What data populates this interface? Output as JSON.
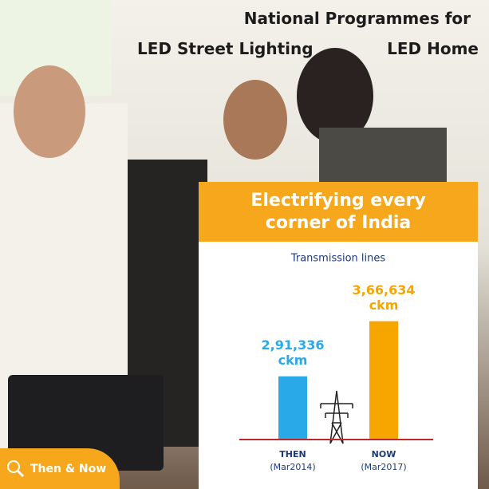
{
  "background_text": [
    "National Programmes for",
    "LED Street Lighting",
    "LED Home"
  ],
  "badge": "Then & Now",
  "chart_data": {
    "type": "bar",
    "title": "Electrifying every corner of India",
    "subtitle": "Transmission lines",
    "categories": [
      "THEN",
      "NOW"
    ],
    "category_notes": [
      "(Mar2014)",
      "(Mar2017)"
    ],
    "values": [
      291336,
      366634
    ],
    "value_labels": [
      "2,91,336",
      "3,66,634"
    ],
    "value_unit": "ckm",
    "colors": [
      "#29a9e8",
      "#f7a600"
    ],
    "ylim": [
      205000,
      400000
    ]
  }
}
